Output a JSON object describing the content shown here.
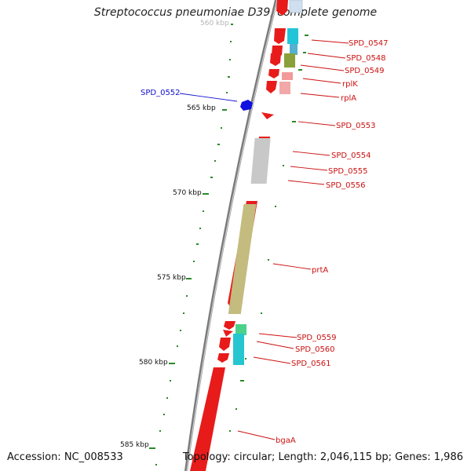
{
  "title": "Streptococcus pneumoniae D39, complete genome",
  "accession": "Accession: NC_008533",
  "topology": "Topology: circular; Length: 2,046,115 bp; Genes: 1,986",
  "colors": {
    "forward": "#e81b1b",
    "reverse": "#1010e0",
    "backbone": "#8c8c8c",
    "tick": "#2a8a2a",
    "label_forward": "#cc1010",
    "label_reverse": "#1010cc"
  },
  "scale_labels": [
    {
      "text": "560 kbp",
      "faded": true
    },
    {
      "text": "565 kbp",
      "faded": false
    },
    {
      "text": "570 kbp",
      "faded": false
    },
    {
      "text": "575 kbp",
      "faded": false
    },
    {
      "text": "580 kbp",
      "faded": false
    },
    {
      "text": "585 kbp",
      "faded": false
    }
  ],
  "genes": [
    {
      "name": "SPD_0547",
      "strand": "+"
    },
    {
      "name": "SPD_0548",
      "strand": "+"
    },
    {
      "name": "SPD_0549",
      "strand": "+"
    },
    {
      "name": "rplK",
      "strand": "+"
    },
    {
      "name": "rplA",
      "strand": "+"
    },
    {
      "name": "SPD_0552",
      "strand": "-"
    },
    {
      "name": "SPD_0553",
      "strand": "+"
    },
    {
      "name": "SPD_0554",
      "strand": "+"
    },
    {
      "name": "SPD_0555",
      "strand": "+"
    },
    {
      "name": "SPD_0556",
      "strand": "+"
    },
    {
      "name": "prtA",
      "strand": "+"
    },
    {
      "name": "SPD_0559",
      "strand": "+"
    },
    {
      "name": "SPD_0560",
      "strand": "+"
    },
    {
      "name": "SPD_0561",
      "strand": "+"
    },
    {
      "name": "bgaA",
      "strand": "+"
    }
  ]
}
